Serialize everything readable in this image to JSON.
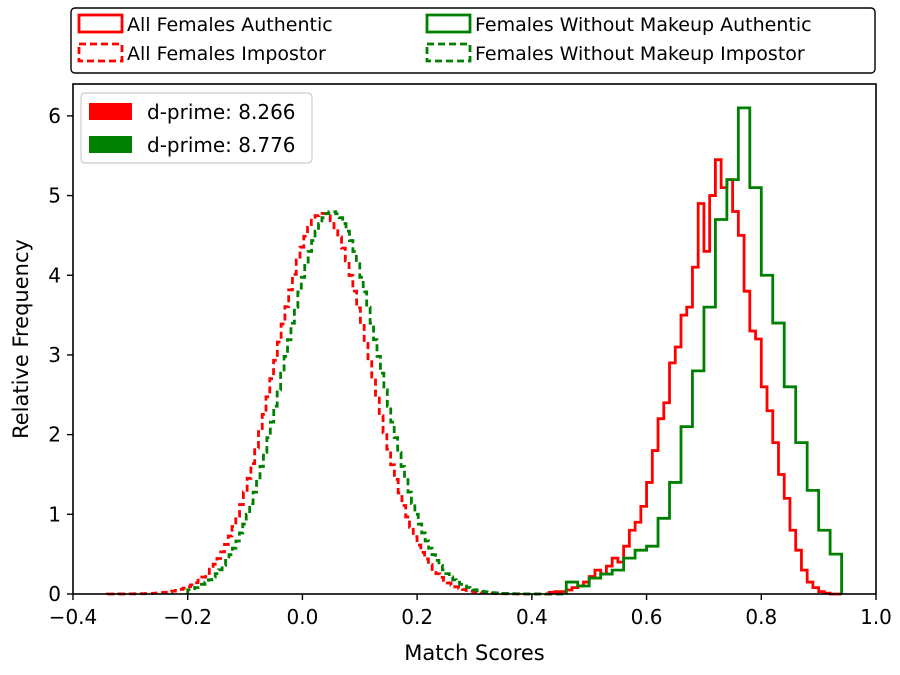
{
  "chart_data": {
    "type": "histogram",
    "title": "",
    "xlabel": "Match Scores",
    "ylabel": "Relative Frequency",
    "xlim": [
      -0.4,
      1.0
    ],
    "ylim": [
      0,
      6.4
    ],
    "xticks": [
      -0.4,
      -0.2,
      0.0,
      0.2,
      0.4,
      0.6,
      0.8,
      1.0
    ],
    "xtick_labels": [
      "−0.4",
      "−0.2",
      "0.0",
      "0.2",
      "0.4",
      "0.6",
      "0.8",
      "1.0"
    ],
    "yticks": [
      0,
      1,
      2,
      3,
      4,
      5,
      6
    ],
    "ytick_labels": [
      "0",
      "1",
      "2",
      "3",
      "4",
      "5",
      "6"
    ],
    "legend_top": {
      "placement": "above-plot",
      "entries": [
        {
          "label": "All Females Authentic",
          "color": "#ff0000",
          "style": "solid"
        },
        {
          "label": "Females Without Makeup Authentic",
          "color": "#008000",
          "style": "solid"
        },
        {
          "label": "All Females Impostor",
          "color": "#ff0000",
          "style": "dashed"
        },
        {
          "label": "Females Without Makeup Impostor",
          "color": "#008000",
          "style": "dashed"
        }
      ]
    },
    "legend_inner": {
      "placement": "upper-left",
      "entries": [
        {
          "label": "d-prime: 8.266",
          "color": "#ff0000"
        },
        {
          "label": "d-prime: 8.776",
          "color": "#008000"
        }
      ]
    },
    "series": [
      {
        "name": "All Females Impostor",
        "color": "#ff0000",
        "style": "dashed",
        "distribution": {
          "kind": "gaussian",
          "mean": 0.035,
          "sd": 0.083,
          "peak": 4.78,
          "range": [
            -0.34,
            0.45
          ],
          "bins": 120
        }
      },
      {
        "name": "Females Without Makeup Impostor",
        "color": "#008000",
        "style": "dashed",
        "distribution": {
          "kind": "gaussian",
          "mean": 0.052,
          "sd": 0.083,
          "peak": 4.8,
          "range": [
            -0.2,
            0.46
          ],
          "bins": 110
        }
      },
      {
        "name": "All Females Authentic",
        "color": "#ff0000",
        "style": "solid",
        "bin_edges": [
          0.43,
          0.44,
          0.45,
          0.46,
          0.47,
          0.48,
          0.49,
          0.5,
          0.51,
          0.52,
          0.53,
          0.54,
          0.55,
          0.56,
          0.57,
          0.58,
          0.59,
          0.6,
          0.61,
          0.62,
          0.63,
          0.64,
          0.65,
          0.66,
          0.67,
          0.68,
          0.69,
          0.7,
          0.71,
          0.72,
          0.73,
          0.74,
          0.75,
          0.76,
          0.77,
          0.78,
          0.79,
          0.8,
          0.81,
          0.82,
          0.83,
          0.84,
          0.85,
          0.86,
          0.87,
          0.88,
          0.89,
          0.9,
          0.91,
          0.92,
          0.93,
          0.94
        ],
        "values": [
          0.02,
          0.03,
          0.03,
          0.05,
          0.08,
          0.1,
          0.15,
          0.22,
          0.3,
          0.25,
          0.35,
          0.45,
          0.4,
          0.6,
          0.8,
          0.9,
          1.1,
          1.4,
          1.8,
          2.2,
          2.4,
          2.9,
          3.1,
          3.5,
          3.6,
          4.1,
          4.9,
          4.3,
          5.0,
          5.45,
          5.1,
          5.2,
          4.8,
          4.5,
          3.8,
          3.3,
          3.2,
          2.6,
          2.3,
          1.9,
          1.5,
          1.2,
          0.8,
          0.55,
          0.3,
          0.15,
          0.08,
          0.03,
          0.01,
          0.0,
          0.0
        ]
      },
      {
        "name": "Females Without Makeup Authentic",
        "color": "#008000",
        "style": "solid",
        "bin_edges": [
          0.46,
          0.48,
          0.5,
          0.52,
          0.54,
          0.56,
          0.58,
          0.6,
          0.62,
          0.64,
          0.66,
          0.68,
          0.7,
          0.72,
          0.74,
          0.76,
          0.78,
          0.8,
          0.82,
          0.84,
          0.86,
          0.88,
          0.9,
          0.92,
          0.94
        ],
        "values": [
          0.15,
          0.1,
          0.2,
          0.25,
          0.3,
          0.45,
          0.55,
          0.6,
          0.95,
          1.4,
          2.1,
          2.8,
          3.6,
          4.7,
          5.2,
          6.1,
          5.1,
          4.0,
          3.4,
          2.6,
          1.9,
          1.3,
          0.8,
          0.5
        ]
      }
    ]
  }
}
